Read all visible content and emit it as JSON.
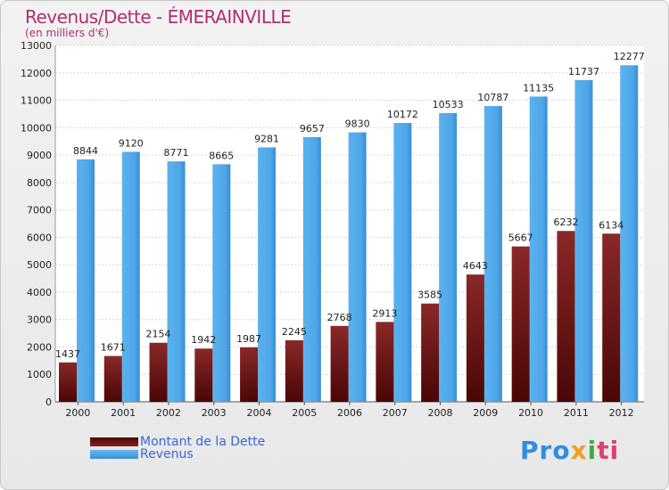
{
  "title": "Revenus/Dette - ÉMERAINVILLE",
  "subtitle": "(en milliers d'€)",
  "logo": {
    "parts": [
      "Pro",
      "x",
      "i",
      "ti"
    ]
  },
  "colors": {
    "dette": "#7a1a1a",
    "revenus": "#4ea6e8",
    "title": "#b0306a",
    "legend_text": "#3c64d8"
  },
  "chart_data": {
    "type": "bar",
    "title": "Revenus/Dette - ÉMERAINVILLE",
    "subtitle": "(en milliers d'€)",
    "categories": [
      "2000",
      "2001",
      "2002",
      "2003",
      "2004",
      "2005",
      "2006",
      "2007",
      "2008",
      "2009",
      "2010",
      "2011",
      "2012"
    ],
    "series": [
      {
        "name": "Montant de la Dette",
        "values": [
          1437,
          1671,
          2154,
          1942,
          1987,
          2245,
          2768,
          2913,
          3585,
          4643,
          5667,
          6232,
          6134
        ]
      },
      {
        "name": "Revenus",
        "values": [
          8844,
          9120,
          8771,
          8665,
          9281,
          9657,
          9830,
          10172,
          10533,
          10787,
          11135,
          11737,
          12277
        ]
      }
    ],
    "value_labels": {
      "dette": [
        "1437",
        "1671",
        "2154",
        "1942",
        "1987",
        "2245",
        "2768",
        "2913",
        "3585",
        "4643",
        "5667",
        "6232",
        "6134"
      ],
      "revenus": [
        "8844",
        "9120",
        "8771",
        "8665",
        "9281",
        "9657",
        "9830",
        "10172",
        "10533",
        "10787",
        "11135",
        "11737",
        "12277"
      ]
    },
    "yticks": [
      "0",
      "1000",
      "2000",
      "3000",
      "4000",
      "5000",
      "6000",
      "7000",
      "8000",
      "9000",
      "10000",
      "11000",
      "12000",
      "13000"
    ],
    "ylim": [
      0,
      13000
    ],
    "grid": true,
    "legend_placement": "bottom-left"
  }
}
